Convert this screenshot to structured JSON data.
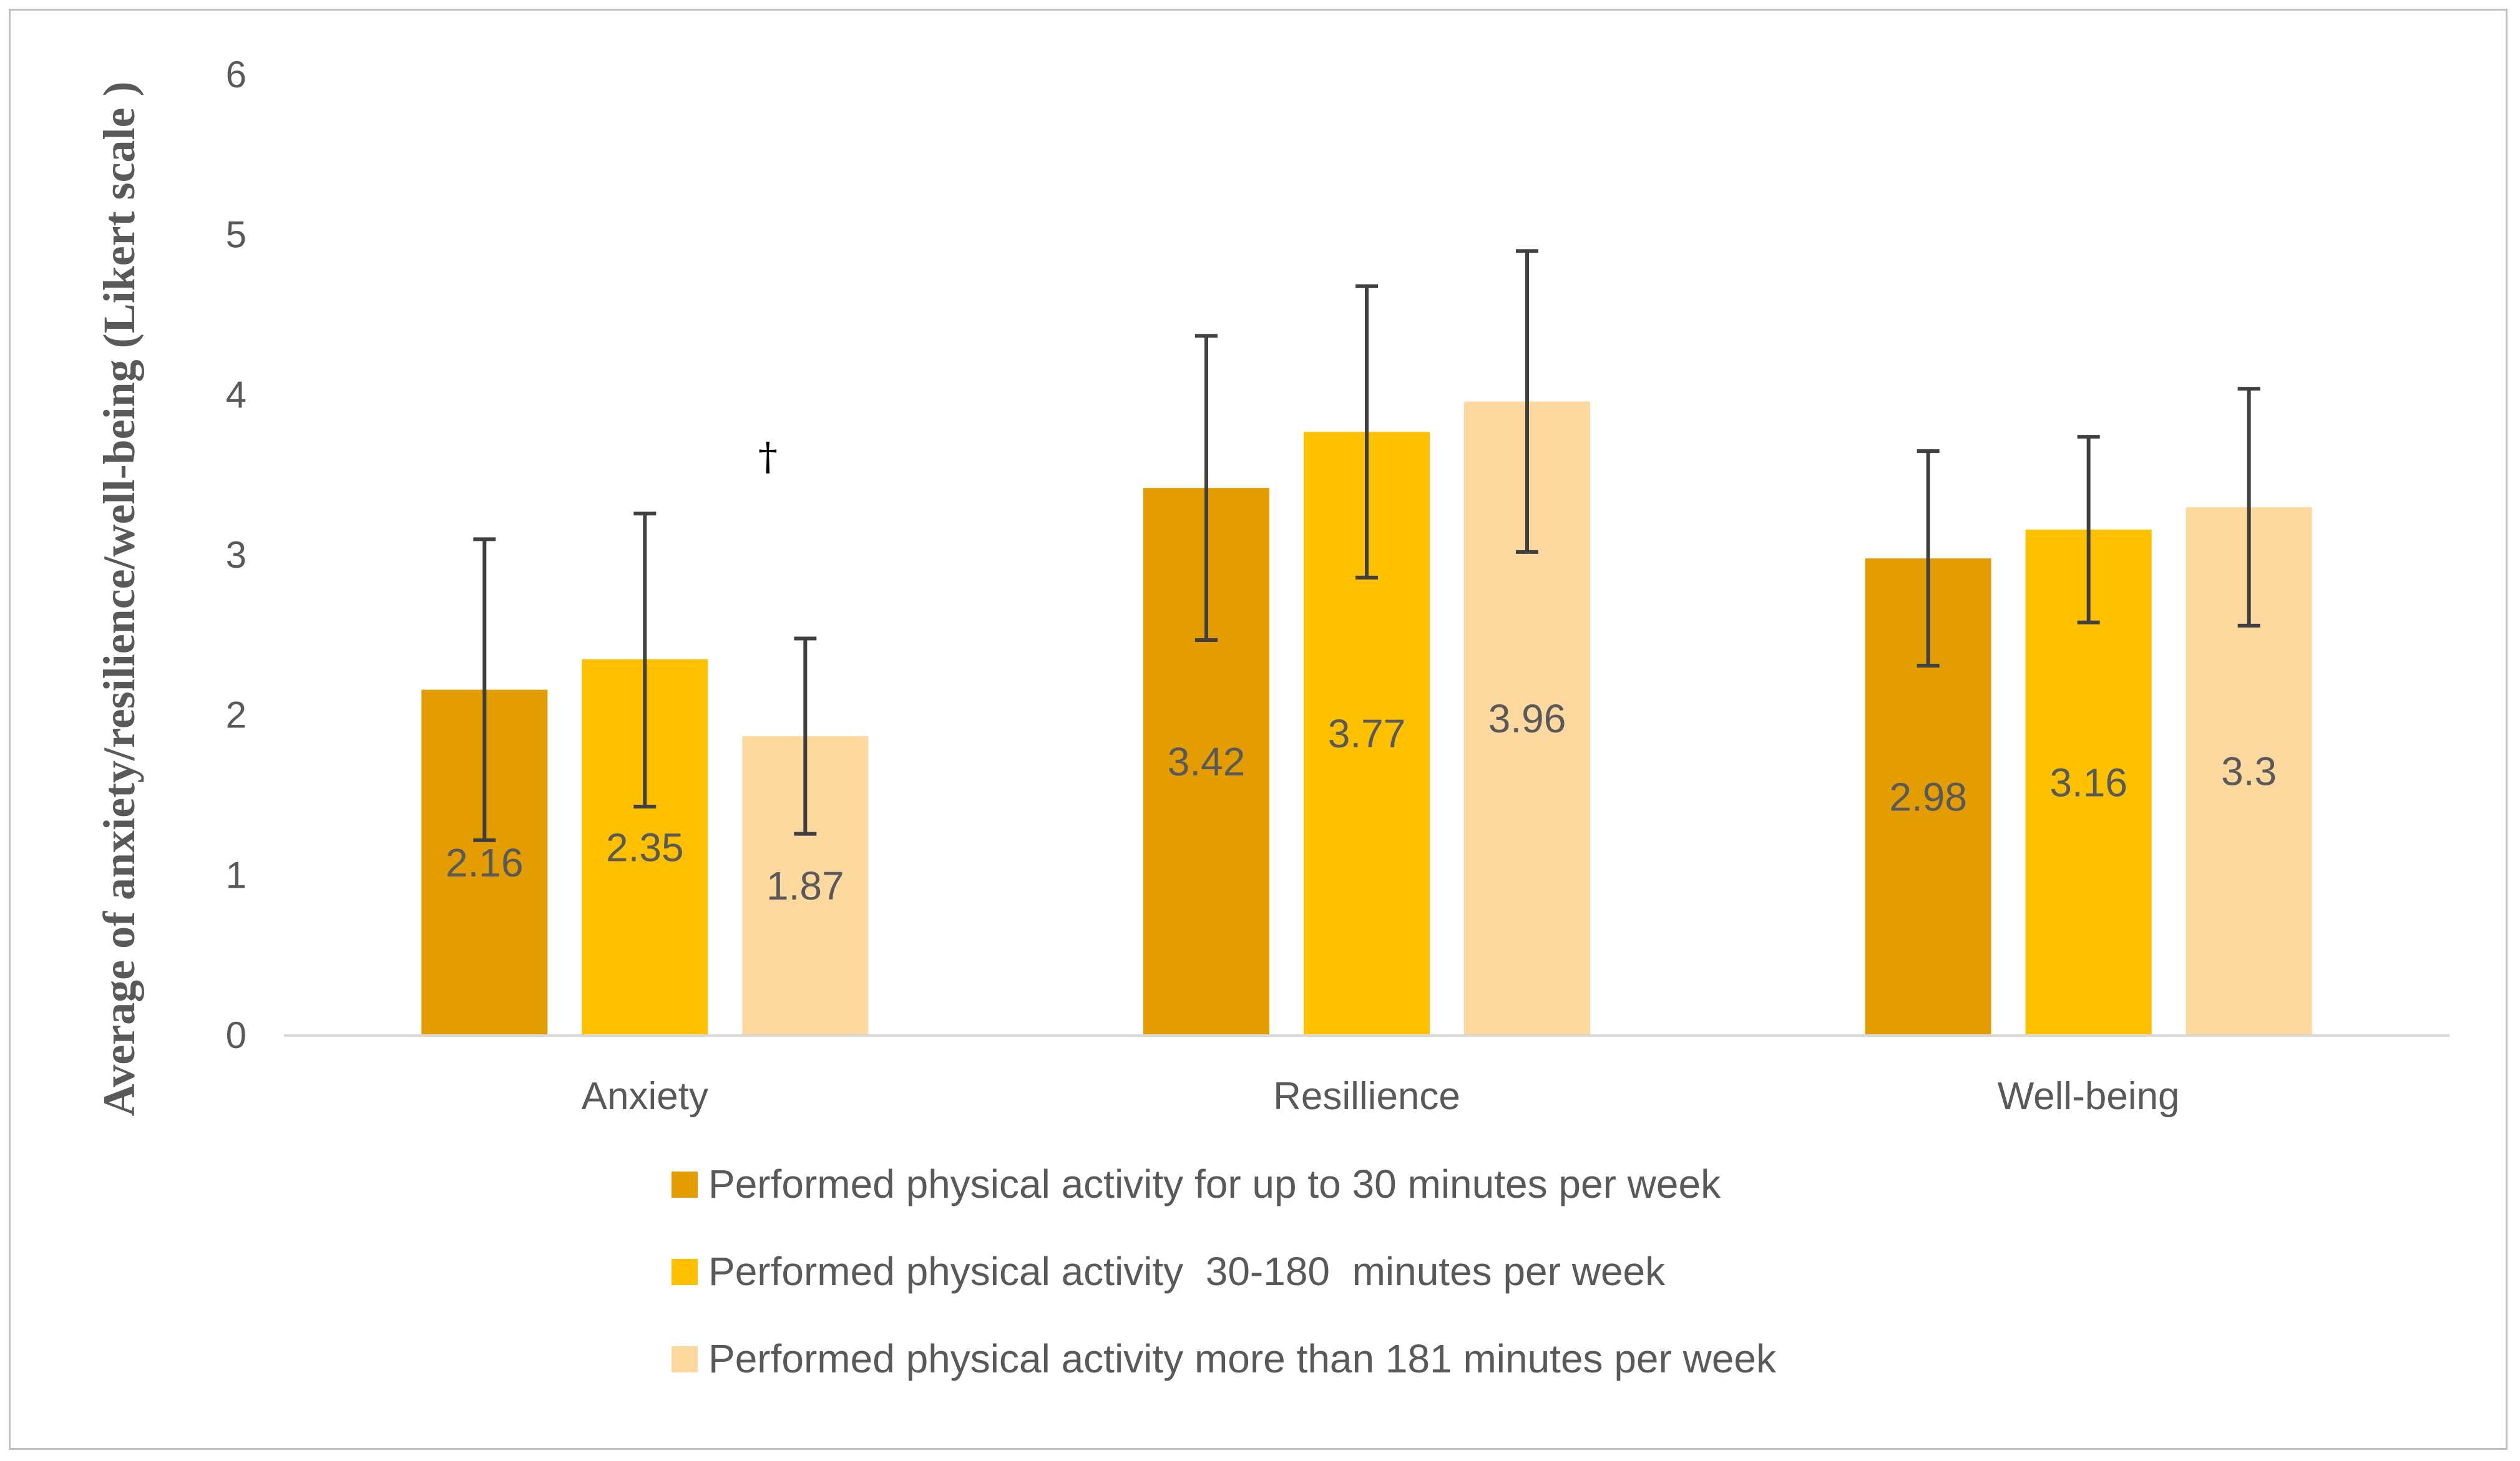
{
  "chart_data": {
    "type": "bar",
    "title": "",
    "xlabel": "",
    "ylabel": "Average of anxiety/resilience/well-being (Likert scale )",
    "ylim": [
      0,
      6
    ],
    "yticks": [
      "0",
      "1",
      "2",
      "3",
      "4",
      "5",
      "6"
    ],
    "categories": [
      "Anxiety",
      "Resillience",
      "Well-being"
    ],
    "series": [
      {
        "name": "Performed physical activity for up to 30 minutes per week",
        "color": "#E39D00",
        "values": [
          2.16,
          3.42,
          2.98
        ],
        "labels": [
          "2.16",
          "3.42",
          "2.98"
        ],
        "error_low": [
          1.22,
          2.47,
          2.31
        ],
        "error_high": [
          3.1,
          4.37,
          3.65
        ]
      },
      {
        "name": "Performed physical activity  30-180  minutes per week",
        "color": "#FFC000",
        "values": [
          2.35,
          3.77,
          3.16
        ],
        "labels": [
          "2.35",
          "3.77",
          "3.16"
        ],
        "error_low": [
          1.43,
          2.86,
          2.58
        ],
        "error_high": [
          3.26,
          4.68,
          3.74
        ]
      },
      {
        "name": "Performed physical activity more than 181 minutes per week",
        "color": "#FDD9A0",
        "values": [
          1.87,
          3.96,
          3.3
        ],
        "labels": [
          "1.87",
          "3.96",
          "3.3"
        ],
        "error_low": [
          1.26,
          3.02,
          2.56
        ],
        "error_high": [
          2.48,
          4.9,
          4.04
        ]
      }
    ],
    "annotations": [
      {
        "text": "†",
        "category": "Anxiety",
        "series_index": 2,
        "y": 3.62
      }
    ],
    "legend_position": "bottom",
    "grid": false
  }
}
